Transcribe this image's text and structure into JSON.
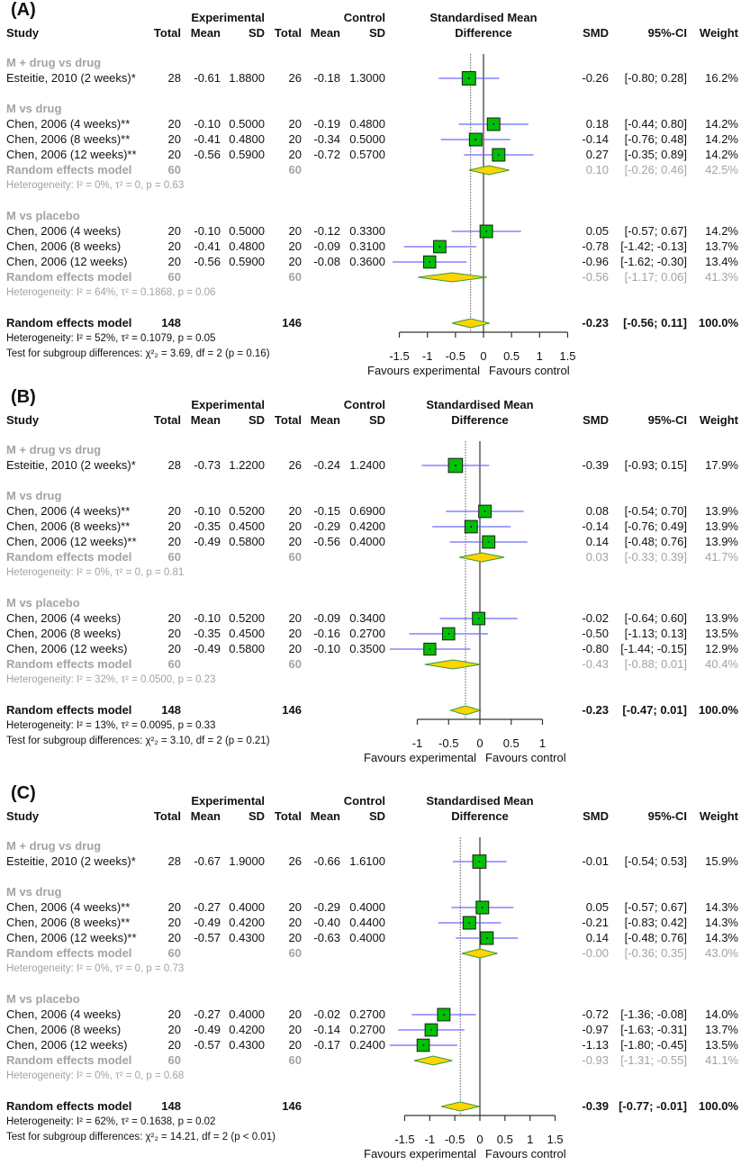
{
  "headers": {
    "experimental": "Experimental",
    "control": "Control",
    "study": "Study",
    "total": "Total",
    "mean": "Mean",
    "sd": "SD",
    "smd_title_1": "Standardised Mean",
    "smd_title_2": "Difference",
    "smd": "SMD",
    "ci": "95%-CI",
    "weight": "Weight"
  },
  "favours": [
    "Favours experimental",
    "Favours control"
  ],
  "colors": {
    "square": "#00c000",
    "ci_line": "#6b6bff",
    "diamond": "#ffd400",
    "diamond_border": "#3a9a3a",
    "subgroup_text": "#a3a3a3"
  },
  "chart_data": [
    {
      "type": "forest",
      "label": "(A)",
      "xlim": [
        -1.5,
        1.5
      ],
      "ticks": [
        "-1.5",
        "-1",
        "-0.5",
        "0",
        "0.5",
        "1",
        "1.5"
      ],
      "groups": [
        {
          "name": "M + drug vs drug",
          "studies": [
            {
              "study": "Esteitie, 2010 (2 weeks)*",
              "et": "28",
              "em": "-0.61",
              "esd": "1.8800",
              "ct": "26",
              "cm": "-0.18",
              "csd": "1.3000",
              "smd": "-0.26",
              "ci": [
                "-0.80",
                "0.28"
              ],
              "w": "16.2%"
            }
          ]
        },
        {
          "name": "M vs drug",
          "studies": [
            {
              "study": "Chen, 2006 (4 weeks)**",
              "et": "20",
              "em": "-0.10",
              "esd": "0.5000",
              "ct": "20",
              "cm": "-0.19",
              "csd": "0.4800",
              "smd": "0.18",
              "ci": [
                "-0.44",
                "0.80"
              ],
              "w": "14.2%"
            },
            {
              "study": "Chen, 2006 (8 weeks)**",
              "et": "20",
              "em": "-0.41",
              "esd": "0.4800",
              "ct": "20",
              "cm": "-0.34",
              "csd": "0.5000",
              "smd": "-0.14",
              "ci": [
                "-0.76",
                "0.48"
              ],
              "w": "14.2%"
            },
            {
              "study": "Chen, 2006 (12 weeks)**",
              "et": "20",
              "em": "-0.56",
              "esd": "0.5900",
              "ct": "20",
              "cm": "-0.72",
              "csd": "0.5700",
              "smd": "0.27",
              "ci": [
                "-0.35",
                "0.89"
              ],
              "w": "14.2%"
            }
          ],
          "subtotal": {
            "label": "Random effects model",
            "et": "60",
            "ct": "60",
            "smd": "0.10",
            "ci": [
              "-0.26",
              "0.46"
            ],
            "w": "42.5%",
            "het": "Heterogeneity: I² = 0%, τ² = 0, p = 0.63"
          }
        },
        {
          "name": "M vs placebo",
          "studies": [
            {
              "study": "Chen, 2006 (4 weeks)",
              "et": "20",
              "em": "-0.10",
              "esd": "0.5000",
              "ct": "20",
              "cm": "-0.12",
              "csd": "0.3300",
              "smd": "0.05",
              "ci": [
                "-0.57",
                "0.67"
              ],
              "w": "14.2%"
            },
            {
              "study": "Chen, 2006 (8 weeks)",
              "et": "20",
              "em": "-0.41",
              "esd": "0.4800",
              "ct": "20",
              "cm": "-0.09",
              "csd": "0.3100",
              "smd": "-0.78",
              "ci": [
                "-1.42",
                "-0.13"
              ],
              "w": "13.7%"
            },
            {
              "study": "Chen, 2006 (12 weeks)",
              "et": "20",
              "em": "-0.56",
              "esd": "0.5900",
              "ct": "20",
              "cm": "-0.08",
              "csd": "0.3600",
              "smd": "-0.96",
              "ci": [
                "-1.62",
                "-0.30"
              ],
              "w": "13.4%"
            }
          ],
          "subtotal": {
            "label": "Random effects model",
            "et": "60",
            "ct": "60",
            "smd": "-0.56",
            "ci": [
              "-1.17",
              "0.06"
            ],
            "w": "41.3%",
            "het": "Heterogeneity: I² = 64%, τ² = 0.1868, p = 0.06"
          }
        }
      ],
      "overall": {
        "label": "Random effects model",
        "et": "148",
        "ct": "146",
        "smd": "-0.23",
        "ci": [
          "-0.56",
          "0.11"
        ],
        "w": "100.0%",
        "het": "Heterogeneity: I² = 52%, τ² = 0.1079, p = 0.05",
        "test": "Test for subgroup differences: χ²₂ = 3.69, df = 2 (p = 0.16)"
      }
    },
    {
      "type": "forest",
      "label": "(B)",
      "xlim": [
        -1,
        1
      ],
      "ticks": [
        "-1",
        "-0.5",
        "0",
        "0.5",
        "1"
      ],
      "groups": [
        {
          "name": "M + drug vs drug",
          "studies": [
            {
              "study": "Esteitie, 2010 (2 weeks)*",
              "et": "28",
              "em": "-0.73",
              "esd": "1.2200",
              "ct": "26",
              "cm": "-0.24",
              "csd": "1.2400",
              "smd": "-0.39",
              "ci": [
                "-0.93",
                "0.15"
              ],
              "w": "17.9%"
            }
          ]
        },
        {
          "name": "M vs drug",
          "studies": [
            {
              "study": "Chen, 2006 (4 weeks)**",
              "et": "20",
              "em": "-0.10",
              "esd": "0.5200",
              "ct": "20",
              "cm": "-0.15",
              "csd": "0.6900",
              "smd": "0.08",
              "ci": [
                "-0.54",
                "0.70"
              ],
              "w": "13.9%"
            },
            {
              "study": "Chen, 2006 (8 weeks)**",
              "et": "20",
              "em": "-0.35",
              "esd": "0.4500",
              "ct": "20",
              "cm": "-0.29",
              "csd": "0.4200",
              "smd": "-0.14",
              "ci": [
                "-0.76",
                "0.49"
              ],
              "w": "13.9%"
            },
            {
              "study": "Chen, 2006 (12 weeks)**",
              "et": "20",
              "em": "-0.49",
              "esd": "0.5800",
              "ct": "20",
              "cm": "-0.56",
              "csd": "0.4000",
              "smd": "0.14",
              "ci": [
                "-0.48",
                "0.76"
              ],
              "w": "13.9%"
            }
          ],
          "subtotal": {
            "label": "Random effects model",
            "et": "60",
            "ct": "60",
            "smd": "0.03",
            "ci": [
              "-0.33",
              "0.39"
            ],
            "w": "41.7%",
            "het": "Heterogeneity: I² = 0%, τ² = 0, p = 0.81"
          }
        },
        {
          "name": "M vs placebo",
          "studies": [
            {
              "study": "Chen, 2006 (4 weeks)",
              "et": "20",
              "em": "-0.10",
              "esd": "0.5200",
              "ct": "20",
              "cm": "-0.09",
              "csd": "0.3400",
              "smd": "-0.02",
              "ci": [
                "-0.64",
                "0.60"
              ],
              "w": "13.9%"
            },
            {
              "study": "Chen, 2006 (8 weeks)",
              "et": "20",
              "em": "-0.35",
              "esd": "0.4500",
              "ct": "20",
              "cm": "-0.16",
              "csd": "0.2700",
              "smd": "-0.50",
              "ci": [
                "-1.13",
                "0.13"
              ],
              "w": "13.5%"
            },
            {
              "study": "Chen, 2006 (12 weeks)",
              "et": "20",
              "em": "-0.49",
              "esd": "0.5800",
              "ct": "20",
              "cm": "-0.10",
              "csd": "0.3500",
              "smd": "-0.80",
              "ci": [
                "-1.44",
                "-0.15"
              ],
              "w": "12.9%"
            }
          ],
          "subtotal": {
            "label": "Random effects model",
            "et": "60",
            "ct": "60",
            "smd": "-0.43",
            "ci": [
              "-0.88",
              "0.01"
            ],
            "w": "40.4%",
            "het": "Heterogeneity: I² = 32%, τ² = 0.0500, p = 0.23"
          }
        }
      ],
      "overall": {
        "label": "Random effects model",
        "et": "148",
        "ct": "146",
        "smd": "-0.23",
        "ci": [
          "-0.47",
          "0.01"
        ],
        "w": "100.0%",
        "het": "Heterogeneity: I² = 13%, τ² = 0.0095, p = 0.33",
        "test": "Test for subgroup differences: χ²₂ = 3.10, df = 2 (p = 0.21)"
      }
    },
    {
      "type": "forest",
      "label": "(C)",
      "xlim": [
        -1.5,
        1.5
      ],
      "ticks": [
        "-1.5",
        "-1",
        "-0.5",
        "0",
        "0.5",
        "1",
        "1.5"
      ],
      "groups": [
        {
          "name": "M + drug vs drug",
          "studies": [
            {
              "study": "Esteitie, 2010 (2 weeks)*",
              "et": "28",
              "em": "-0.67",
              "esd": "1.9000",
              "ct": "26",
              "cm": "-0.66",
              "csd": "1.6100",
              "smd": "-0.01",
              "ci": [
                "-0.54",
                "0.53"
              ],
              "w": "15.9%"
            }
          ]
        },
        {
          "name": "M vs drug",
          "studies": [
            {
              "study": "Chen, 2006 (4 weeks)**",
              "et": "20",
              "em": "-0.27",
              "esd": "0.4000",
              "ct": "20",
              "cm": "-0.29",
              "csd": "0.4000",
              "smd": "0.05",
              "ci": [
                "-0.57",
                "0.67"
              ],
              "w": "14.3%"
            },
            {
              "study": "Chen, 2006 (8 weeks)**",
              "et": "20",
              "em": "-0.49",
              "esd": "0.4200",
              "ct": "20",
              "cm": "-0.40",
              "csd": "0.4400",
              "smd": "-0.21",
              "ci": [
                "-0.83",
                "0.42"
              ],
              "w": "14.3%"
            },
            {
              "study": "Chen, 2006 (12 weeks)**",
              "et": "20",
              "em": "-0.57",
              "esd": "0.4300",
              "ct": "20",
              "cm": "-0.63",
              "csd": "0.4000",
              "smd": "0.14",
              "ci": [
                "-0.48",
                "0.76"
              ],
              "w": "14.3%"
            }
          ],
          "subtotal": {
            "label": "Random effects model",
            "et": "60",
            "ct": "60",
            "smd": "-0.00",
            "ci": [
              "-0.36",
              "0.35"
            ],
            "w": "43.0%",
            "het": "Heterogeneity: I² = 0%, τ² = 0, p = 0.73"
          }
        },
        {
          "name": "M vs placebo",
          "studies": [
            {
              "study": "Chen, 2006 (4 weeks)",
              "et": "20",
              "em": "-0.27",
              "esd": "0.4000",
              "ct": "20",
              "cm": "-0.02",
              "csd": "0.2700",
              "smd": "-0.72",
              "ci": [
                "-1.36",
                "-0.08"
              ],
              "w": "14.0%"
            },
            {
              "study": "Chen, 2006 (8 weeks)",
              "et": "20",
              "em": "-0.49",
              "esd": "0.4200",
              "ct": "20",
              "cm": "-0.14",
              "csd": "0.2700",
              "smd": "-0.97",
              "ci": [
                "-1.63",
                "-0.31"
              ],
              "w": "13.7%"
            },
            {
              "study": "Chen, 2006 (12 weeks)",
              "et": "20",
              "em": "-0.57",
              "esd": "0.4300",
              "ct": "20",
              "cm": "-0.17",
              "csd": "0.2400",
              "smd": "-1.13",
              "ci": [
                "-1.80",
                "-0.45"
              ],
              "w": "13.5%"
            }
          ],
          "subtotal": {
            "label": "Random effects model",
            "et": "60",
            "ct": "60",
            "smd": "-0.93",
            "ci": [
              "-1.31",
              "-0.55"
            ],
            "w": "41.1%",
            "het": "Heterogeneity: I² = 0%, τ² = 0, p = 0.68"
          }
        }
      ],
      "overall": {
        "label": "Random effects model",
        "et": "148",
        "ct": "146",
        "smd": "-0.39",
        "ci": [
          "-0.77",
          "-0.01"
        ],
        "w": "100.0%",
        "het": "Heterogeneity: I² = 62%, τ² = 0.1638, p = 0.02",
        "test": "Test for subgroup differences: χ²₂ = 14.21, df = 2 (p < 0.01)"
      }
    }
  ]
}
